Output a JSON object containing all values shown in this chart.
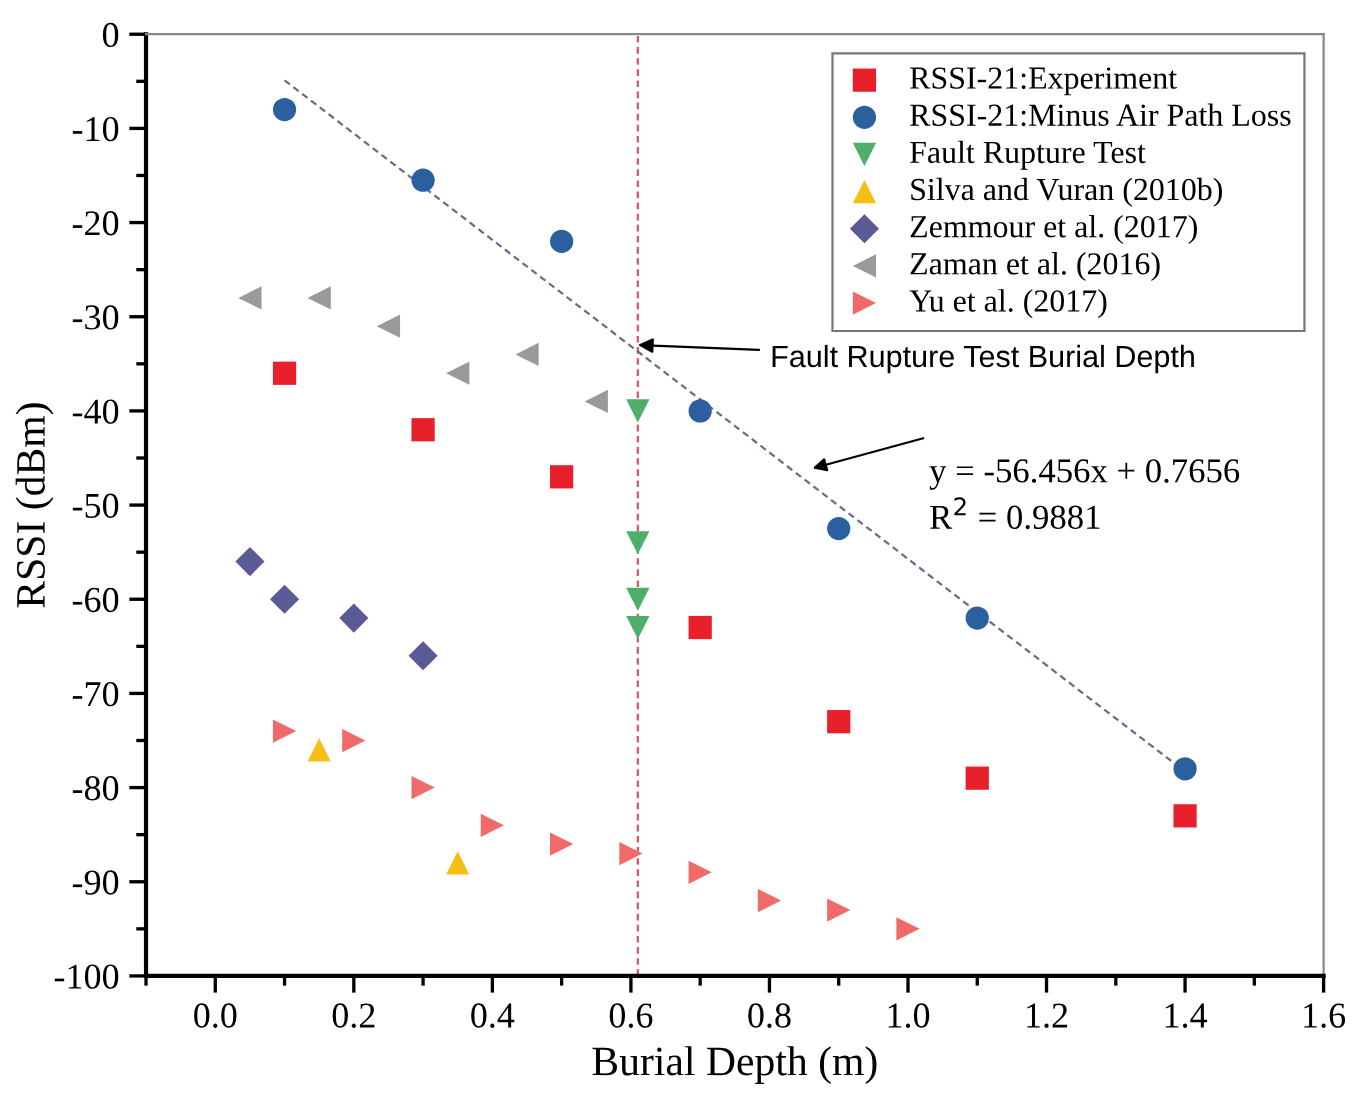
{
  "chart_data": {
    "type": "scatter",
    "xlabel": "Burial Depth (m)",
    "ylabel": "RSSI (dBm)",
    "xlim": [
      -0.1,
      1.6
    ],
    "xticks": [
      {
        "value": 0,
        "label": "0.0"
      },
      0.2,
      0.4,
      0.6,
      0.8,
      {
        "value": 1,
        "label": "1.0"
      },
      1.2,
      1.4,
      1.6
    ],
    "ylim": [
      -100,
      0
    ],
    "yticks": [
      -100,
      -90,
      -80,
      -70,
      -60,
      -50,
      -40,
      -30,
      -20,
      -10,
      0
    ],
    "grid": false,
    "legend": "top right",
    "series": [
      {
        "name": "RSSI-21:Experiment",
        "color": "#e8202a",
        "marker": "square",
        "x": [
          0.1,
          0.3,
          0.5,
          0.7,
          0.9,
          1.1,
          1.4
        ],
        "values": [
          -36,
          -42,
          -47,
          -63,
          -73,
          -79,
          -83
        ]
      },
      {
        "name": "RSSI-21:Minus Air Path Loss",
        "color": "#2b5f9e",
        "marker": "circle",
        "x": [
          0.1,
          0.3,
          0.5,
          0.7,
          0.9,
          1.1,
          1.4
        ],
        "values": [
          -8,
          -15.5,
          -22,
          -40,
          -52.5,
          -62,
          -78
        ]
      },
      {
        "name": "Fault Rupture Test",
        "color": "#4cb06a",
        "marker": "triangle-down",
        "x": [
          0.61,
          0.61,
          0.61,
          0.61
        ],
        "values": [
          -40,
          -54,
          -60,
          -63
        ]
      },
      {
        "name": "Silva and Vuran (2010b)",
        "color": "#f7be16",
        "marker": "triangle",
        "x": [
          0.15,
          0.35
        ],
        "values": [
          -76,
          -88
        ]
      },
      {
        "name": "Zemmour et al. (2017)",
        "color": "#5a5a96",
        "marker": "diamond",
        "x": [
          0.05,
          0.1,
          0.2,
          0.3
        ],
        "values": [
          -56,
          -60,
          -62,
          -66
        ]
      },
      {
        "name": "Zaman et al. (2016)",
        "color": "#9a9a9a",
        "marker": "triangle-left",
        "x": [
          0.05,
          0.15,
          0.25,
          0.35,
          0.45,
          0.55
        ],
        "values": [
          -28,
          -28,
          -31,
          -36,
          -34,
          -39
        ]
      },
      {
        "name": "Yu et al. (2017)",
        "color": "#f06a6a",
        "marker": "triangle-right",
        "x": [
          0.1,
          0.2,
          0.3,
          0.4,
          0.5,
          0.6,
          0.7,
          0.8,
          0.9,
          1.0
        ],
        "values": [
          -74,
          -75,
          -80,
          -84,
          -86,
          -87,
          -89,
          -92,
          -93,
          -95
        ]
      },
      {
        "type": "line",
        "color": "#6a6a8a",
        "line_style": "dashed",
        "marker": "none",
        "x": [
          0.1,
          1.4
        ],
        "values": [
          -4.9,
          -78.3
        ]
      }
    ],
    "ref_lines": [
      {
        "axis": "x",
        "value": 0.61,
        "color": "#e0506a",
        "line_style": "dashed"
      }
    ],
    "annotations": [
      {
        "text": "Fault Rupture Test Burial Depth",
        "x": 0.61,
        "y": -33
      },
      "y = -56.456x + 0.7656",
      "R$^{2}$ = 0.9881"
    ]
  }
}
